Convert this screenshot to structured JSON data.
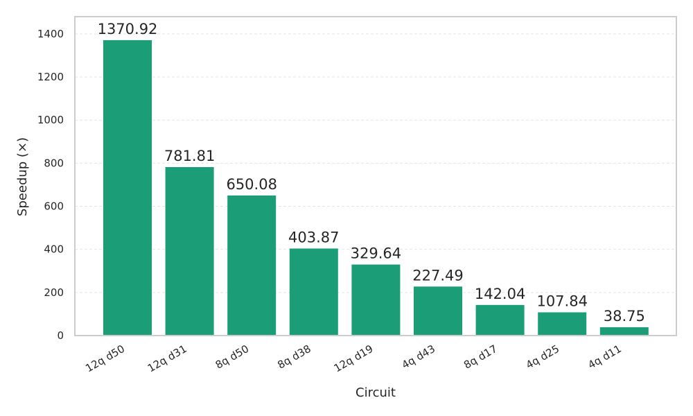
{
  "chart_data": {
    "type": "bar",
    "categories": [
      "12q d50",
      "12q d31",
      "8q d50",
      "8q d38",
      "12q d19",
      "4q d43",
      "8q d17",
      "4q d25",
      "4q d11"
    ],
    "values": [
      1370.92,
      781.81,
      650.08,
      403.87,
      329.64,
      227.49,
      142.04,
      107.84,
      38.75
    ],
    "value_labels": [
      "1370.92",
      "781.81",
      "650.08",
      "403.87",
      "329.64",
      "227.49",
      "142.04",
      "107.84",
      "38.75"
    ],
    "xlabel": "Circuit",
    "ylabel": "Speedup (×)",
    "ylim": [
      0,
      1480
    ],
    "yticks": [
      0,
      200,
      400,
      600,
      800,
      1000,
      1200,
      1400
    ],
    "grid": "y-dashed",
    "bar_color": "#1b9e77",
    "frame_color": "#cccccc",
    "grid_color": "#e5e5e5"
  }
}
